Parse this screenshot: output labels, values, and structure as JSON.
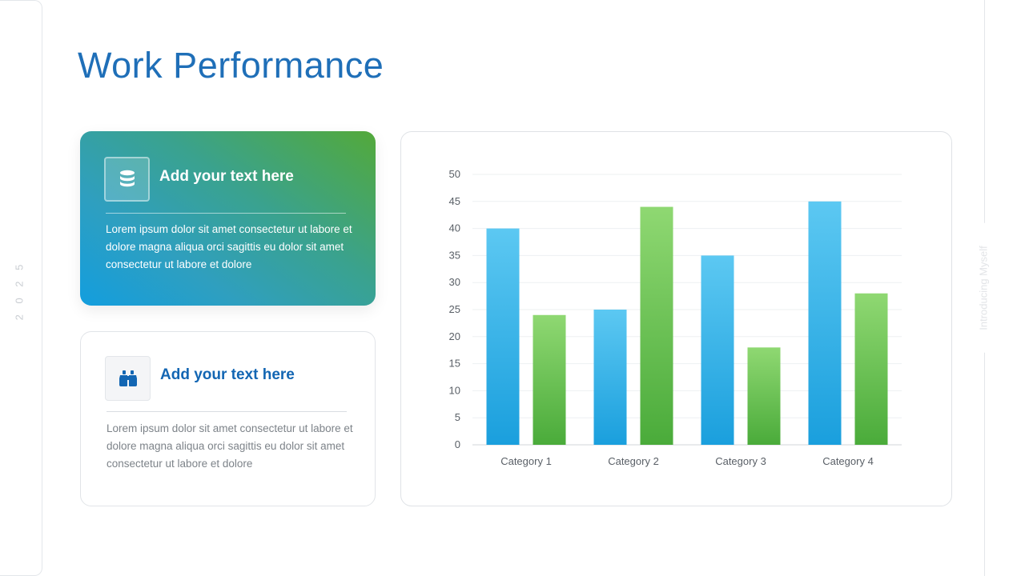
{
  "page": {
    "title": "Work Performance",
    "year": "2 0 2 5",
    "side_label": "Introducing Myself"
  },
  "cards": [
    {
      "icon": "database-icon",
      "heading": "Add your text here",
      "body": "Lorem ipsum dolor sit amet consectetur ut labore et dolore magna aliqua orci sagittis eu dolor sit amet consectetur ut  labore et dolore"
    },
    {
      "icon": "binoculars-icon",
      "heading": "Add your text here",
      "body": "Lorem ipsum dolor sit amet consectetur ut labore et dolore magna aliqua orci sagittis eu dolor sit amet consectetur ut  labore et dolore"
    }
  ],
  "colors": {
    "title": "#1f6fb8",
    "series_blue": "#1a9fdd",
    "series_green": "#4aab3a"
  },
  "chart_data": {
    "type": "bar",
    "categories": [
      "Category 1",
      "Category 2",
      "Category 3",
      "Category 4"
    ],
    "series": [
      {
        "values": [
          40,
          25,
          35,
          45
        ],
        "color": "#1a9fdd"
      },
      {
        "values": [
          24,
          44,
          18,
          28
        ],
        "color": "#4aab3a"
      }
    ],
    "yticks": [
      0,
      5,
      10,
      15,
      20,
      25,
      30,
      35,
      40,
      45,
      50
    ],
    "ylim": [
      0,
      50
    ],
    "grid": true,
    "legend": "none"
  }
}
